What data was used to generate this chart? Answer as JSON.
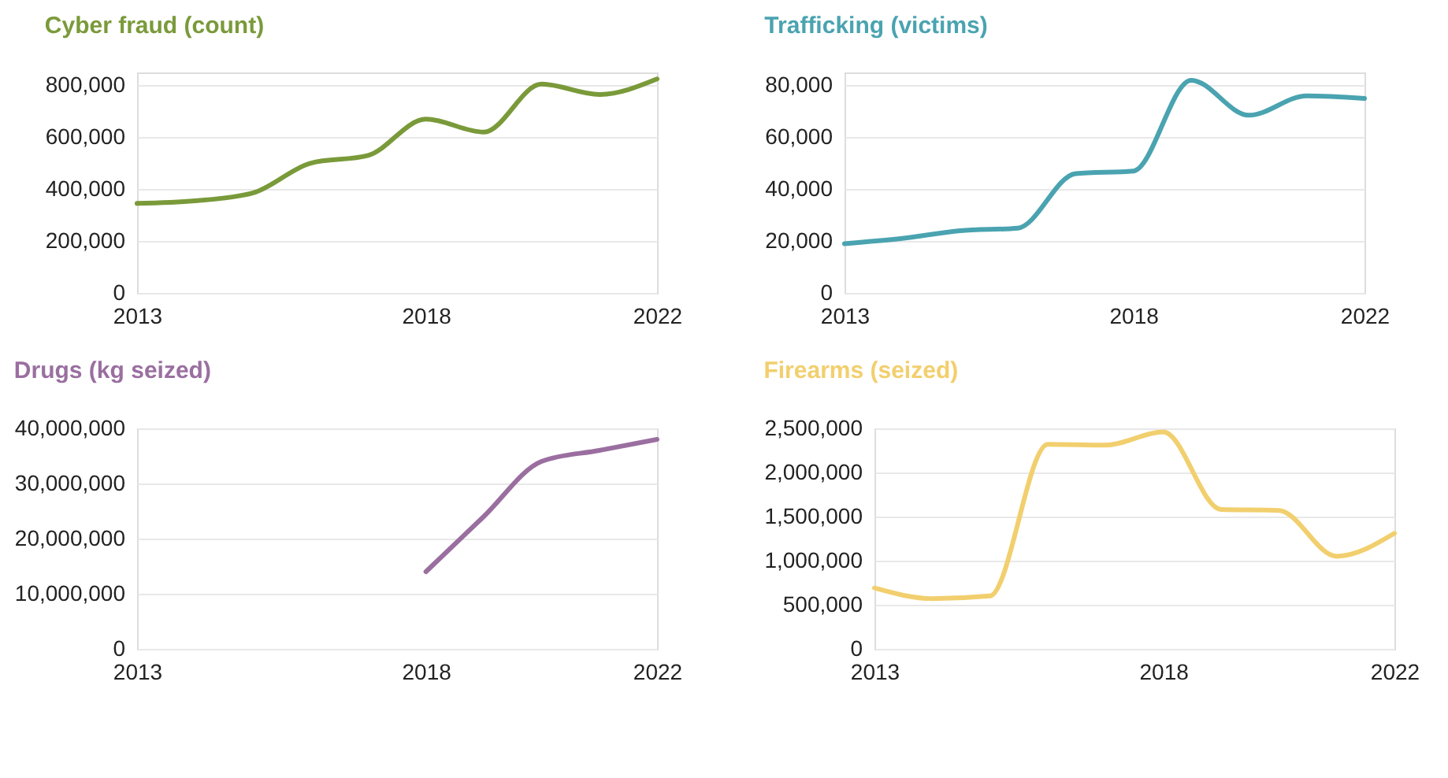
{
  "chart_data": [
    {
      "type": "line",
      "title": "Cyber fraud (count)",
      "x": [
        2013,
        2014,
        2015,
        2016,
        2017,
        2018,
        2019,
        2020,
        2021,
        2022
      ],
      "xlim": [
        2013,
        2022
      ],
      "xticks": [
        2013,
        2018,
        2022
      ],
      "ylim": [
        0,
        850000
      ],
      "yticks": [
        {
          "value": 0,
          "label": "0"
        },
        {
          "value": 200000,
          "label": "200,000"
        },
        {
          "value": 400000,
          "label": "400,000"
        },
        {
          "value": 600000,
          "label": "600,000"
        },
        {
          "value": 800000,
          "label": "800,000"
        }
      ],
      "grid": "y",
      "legend": false,
      "series": [
        {
          "color": "#7a9a3a",
          "values": [
            345000,
            355000,
            385000,
            500000,
            530000,
            670000,
            620000,
            805000,
            765000,
            825000
          ]
        }
      ]
    },
    {
      "type": "line",
      "title": "Trafficking (victims)",
      "x": [
        2013,
        2014,
        2015,
        2016,
        2017,
        2018,
        2019,
        2020,
        2021,
        2022
      ],
      "xlim": [
        2013,
        2022
      ],
      "xticks": [
        2013,
        2018,
        2022
      ],
      "ylim": [
        0,
        85000
      ],
      "yticks": [
        {
          "value": 0,
          "label": "0"
        },
        {
          "value": 20000,
          "label": "20,000"
        },
        {
          "value": 40000,
          "label": "40,000"
        },
        {
          "value": 60000,
          "label": "60,000"
        },
        {
          "value": 80000,
          "label": "80,000"
        }
      ],
      "grid": "y",
      "legend": false,
      "series": [
        {
          "color": "#4aa3b0",
          "values": [
            19000,
            21000,
            24000,
            25000,
            46000,
            47000,
            82000,
            68500,
            76000,
            75000
          ]
        }
      ]
    },
    {
      "type": "line",
      "title": "Drugs (kg seized)",
      "xlim": [
        2013,
        2022
      ],
      "xticks": [
        2013,
        2018,
        2022
      ],
      "ylim": [
        0,
        40000000
      ],
      "yticks": [
        {
          "value": 0,
          "label": "0"
        },
        {
          "value": 10000000,
          "label": "10,000,000"
        },
        {
          "value": 20000000,
          "label": "20,000,000"
        },
        {
          "value": 30000000,
          "label": "30,000,000"
        },
        {
          "value": 40000000,
          "label": "40,000,000"
        }
      ],
      "grid": "y",
      "legend": false,
      "series": [
        {
          "color": "#9a6fa0",
          "x": [
            2018,
            2019,
            2020,
            2021,
            2022
          ],
          "values": [
            14000000,
            24000000,
            34000000,
            36000000,
            38000000
          ]
        }
      ]
    },
    {
      "type": "line",
      "title": "Firearms (seized)",
      "x": [
        2013,
        2014,
        2015,
        2016,
        2017,
        2018,
        2019,
        2020,
        2021,
        2022
      ],
      "xlim": [
        2013,
        2022
      ],
      "xticks": [
        2013,
        2018,
        2022
      ],
      "ylim": [
        0,
        2500000
      ],
      "yticks": [
        {
          "value": 0,
          "label": "0"
        },
        {
          "value": 500000,
          "label": "500,000"
        },
        {
          "value": 1000000,
          "label": "1,000,000"
        },
        {
          "value": 1500000,
          "label": "1,500,000"
        },
        {
          "value": 2000000,
          "label": "2,000,000"
        },
        {
          "value": 2500000,
          "label": "2,500,000"
        }
      ],
      "grid": "y",
      "legend": false,
      "series": [
        {
          "color": "#f2cf6e",
          "values": [
            690000,
            570000,
            600000,
            2320000,
            2310000,
            2460000,
            1580000,
            1570000,
            1050000,
            1310000
          ]
        }
      ]
    }
  ]
}
